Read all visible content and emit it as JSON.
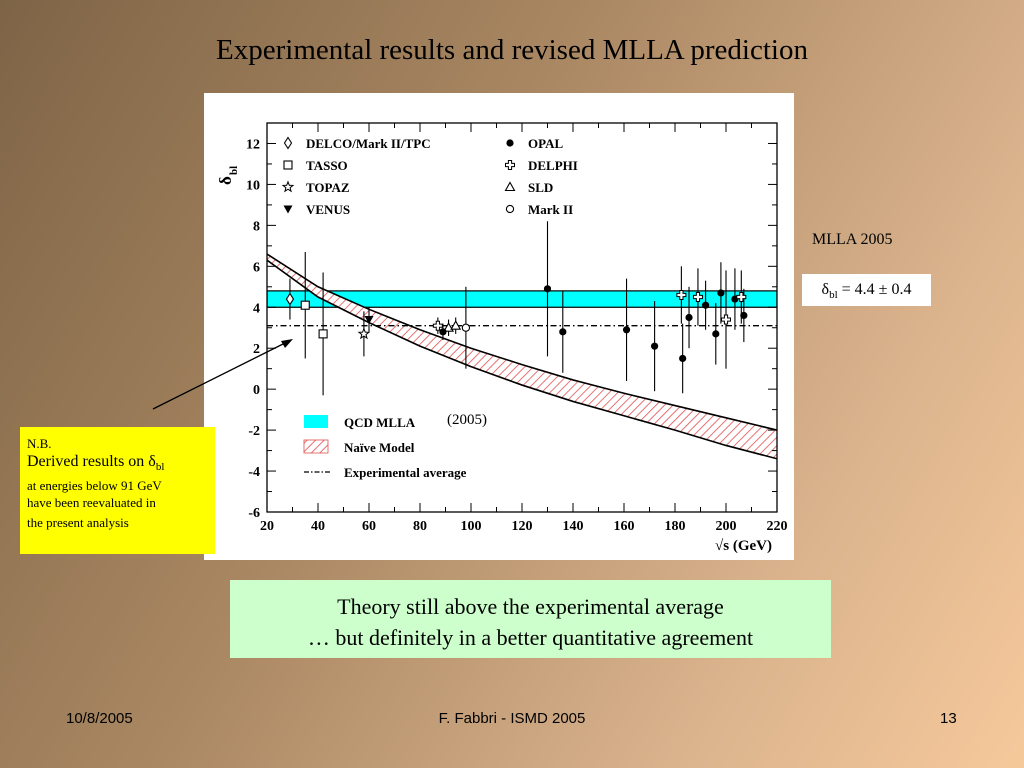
{
  "slide": {
    "title": "Experimental results and revised MLLA prediction",
    "mlla_label": "MLLA 2005",
    "delta_prefix": "δ",
    "delta_sub": "bl",
    "delta_value": " = 4.4 ± 0.4",
    "nb_title": "N.B.",
    "nb_line1_prefix": "Derived results on δ",
    "nb_line1_sub": "bl",
    "nb_line2": "at energies below 91 GeV",
    "nb_line3": "have been reevaluated in",
    "nb_line4": "the present analysis",
    "theory_line1": "Theory still above the experimental average",
    "theory_line2": "… but definitely in a better quantitative agreement",
    "footer_date": "10/8/2005",
    "footer_center": "F. Fabbri - ISMD 2005",
    "footer_page": "13"
  },
  "colors": {
    "mlla_band": "#00ffff",
    "naive_band_hatch": "#e05050",
    "nb_box": "#ffff00",
    "theory_box": "#ccffcc"
  },
  "chart_data": {
    "type": "scatter",
    "xlabel": "√s (GeV)",
    "ylabel": "δ",
    "ylabel_sub": "bl",
    "xlim": [
      20,
      220
    ],
    "ylim": [
      -6,
      13
    ],
    "xticks": [
      20,
      40,
      60,
      80,
      100,
      120,
      140,
      160,
      180,
      200,
      220
    ],
    "yticks": [
      -6,
      -4,
      -2,
      0,
      2,
      4,
      6,
      8,
      10,
      12
    ],
    "legend_top": [
      {
        "marker": "diamond-open",
        "label": "DELCO/Mark II/TPC"
      },
      {
        "marker": "square-open",
        "label": "TASSO"
      },
      {
        "marker": "star-open",
        "label": "TOPAZ"
      },
      {
        "marker": "triangle-down-filled",
        "label": "VENUS"
      },
      {
        "marker": "circle-filled",
        "label": "OPAL"
      },
      {
        "marker": "cross-open",
        "label": "DELPHI"
      },
      {
        "marker": "triangle-open",
        "label": "SLD"
      },
      {
        "marker": "circle-open",
        "label": "Mark II"
      }
    ],
    "legend_bottom": [
      {
        "kind": "band-fill",
        "label": "QCD MLLA"
      },
      {
        "kind": "band-hatch",
        "label": "Naïve Model"
      },
      {
        "kind": "dashdot",
        "label": "Experimental average"
      }
    ],
    "legend_note": "(2005)",
    "mlla_band": [
      4.0,
      4.8
    ],
    "experimental_average": 3.1,
    "naive_model_upper": [
      [
        20,
        6.6
      ],
      [
        40,
        5.0
      ],
      [
        60,
        3.9
      ],
      [
        80,
        2.9
      ],
      [
        100,
        2.0
      ],
      [
        120,
        1.2
      ],
      [
        140,
        0.45
      ],
      [
        160,
        -0.2
      ],
      [
        180,
        -0.8
      ],
      [
        200,
        -1.4
      ],
      [
        220,
        -2.0
      ]
    ],
    "naive_model_lower": [
      [
        20,
        6.3
      ],
      [
        40,
        4.5
      ],
      [
        60,
        3.25
      ],
      [
        80,
        2.1
      ],
      [
        100,
        1.1
      ],
      [
        120,
        0.2
      ],
      [
        140,
        -0.6
      ],
      [
        160,
        -1.3
      ],
      [
        180,
        -2.0
      ],
      [
        200,
        -2.75
      ],
      [
        220,
        -3.4
      ]
    ],
    "points": [
      {
        "series": "DELCO/Mark II/TPC",
        "marker": "diamond-open",
        "x": 29,
        "y": 4.4,
        "err": 1.0
      },
      {
        "series": "TASSO",
        "marker": "square-open",
        "x": 35,
        "y": 4.1,
        "err": 2.6
      },
      {
        "series": "TASSO",
        "marker": "square-open",
        "x": 42,
        "y": 2.7,
        "err": 3.0
      },
      {
        "series": "TOPAZ",
        "marker": "star-open",
        "x": 58,
        "y": 2.7,
        "err": 1.1
      },
      {
        "series": "VENUS",
        "marker": "triangle-down-filled",
        "x": 60,
        "y": 3.4,
        "err": 0.6
      },
      {
        "series": "SLD",
        "marker": "triangle-open",
        "x": 91.2,
        "y": 3.0,
        "err": 0.4
      },
      {
        "series": "SLD",
        "marker": "triangle-open",
        "x": 94,
        "y": 3.1,
        "err": 0.4
      },
      {
        "series": "Mark II",
        "marker": "circle-open",
        "x": 98,
        "y": 3.0,
        "err": 2.0
      },
      {
        "series": "DELPHI",
        "marker": "cross-open",
        "x": 87,
        "y": 3.1,
        "err": 0.4
      },
      {
        "series": "OPAL",
        "marker": "circle-filled",
        "x": 89,
        "y": 2.8,
        "err": 0.4
      },
      {
        "series": "OPAL",
        "marker": "circle-filled",
        "x": 130,
        "y": 4.9,
        "err": 3.3
      },
      {
        "series": "OPAL",
        "marker": "circle-filled",
        "x": 136,
        "y": 2.8,
        "err": 2.0
      },
      {
        "series": "OPAL",
        "marker": "circle-filled",
        "x": 161,
        "y": 2.9,
        "err": 2.5
      },
      {
        "series": "OPAL",
        "marker": "circle-filled",
        "x": 172,
        "y": 2.1,
        "err": 2.2
      },
      {
        "series": "OPAL",
        "marker": "circle-filled",
        "x": 183,
        "y": 1.5,
        "err": 1.7
      },
      {
        "series": "OPAL",
        "marker": "circle-filled",
        "x": 185.5,
        "y": 3.5,
        "err": 1.5
      },
      {
        "series": "OPAL",
        "marker": "circle-filled",
        "x": 192,
        "y": 4.1,
        "err": 1.2
      },
      {
        "series": "OPAL",
        "marker": "circle-filled",
        "x": 196,
        "y": 2.7,
        "err": 1.5
      },
      {
        "series": "OPAL",
        "marker": "circle-filled",
        "x": 198,
        "y": 4.7,
        "err": 1.5
      },
      {
        "series": "OPAL",
        "marker": "circle-filled",
        "x": 203.5,
        "y": 4.4,
        "err": 1.5
      },
      {
        "series": "OPAL",
        "marker": "circle-filled",
        "x": 207,
        "y": 3.6,
        "err": 1.3
      },
      {
        "series": "DELPHI",
        "marker": "cross-open",
        "x": 182.5,
        "y": 4.6,
        "err": 1.4
      },
      {
        "series": "DELPHI",
        "marker": "cross-open",
        "x": 189,
        "y": 4.5,
        "err": 1.4
      },
      {
        "series": "DELPHI",
        "marker": "cross-open",
        "x": 200,
        "y": 3.4,
        "err": 2.4
      },
      {
        "series": "DELPHI",
        "marker": "cross-open",
        "x": 206,
        "y": 4.5,
        "err": 1.3
      }
    ]
  }
}
